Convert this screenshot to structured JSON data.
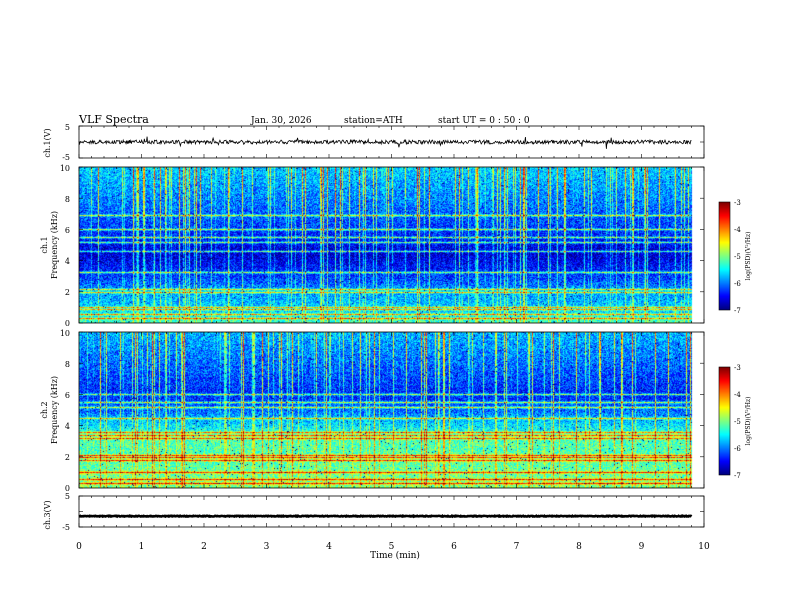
{
  "header": {
    "title": "VLF  Spectra",
    "date": "Jan. 30, 2026",
    "station": "station=ATH",
    "start": "start  UT  =   0  : 50 : 0"
  },
  "chart_data": [
    {
      "type": "line",
      "name": "ch1-waveform",
      "ylabel": "ch.1(V)",
      "ylim": [
        -5,
        5
      ],
      "ytick_labels": [
        "5",
        "-5"
      ],
      "xlim": [
        0,
        10
      ],
      "data_end_min": 9.8,
      "level_volts": 0.0,
      "noise_amplitude_volts": 0.6,
      "spike_amplitude_volts": 1.6
    },
    {
      "type": "heatmap",
      "name": "ch1-spectrogram",
      "ylabel_lines": [
        "ch.1",
        "Frequency  (kHz)"
      ],
      "ylim": [
        0,
        10
      ],
      "ytick_labels": [
        "0",
        "2",
        "4",
        "6",
        "8",
        "10"
      ],
      "xlim": [
        0,
        10
      ],
      "data_end_min": 9.8,
      "color_scale": {
        "label": "log(PSD)(V²/Hz)",
        "tick_labels": [
          "-3",
          "-4",
          "-5",
          "-6",
          "-7"
        ],
        "min": -7,
        "max": -3
      },
      "background_level": [
        {
          "freq_khz": 0,
          "log_psd": -5.2
        },
        {
          "freq_khz": 0.5,
          "log_psd": -5.6
        },
        {
          "freq_khz": 2,
          "log_psd": -5.9
        },
        {
          "freq_khz": 3,
          "log_psd": -6.3
        },
        {
          "freq_khz": 4.5,
          "log_psd": -6.7
        },
        {
          "freq_khz": 6,
          "log_psd": -6.3
        },
        {
          "freq_khz": 8,
          "log_psd": -6.0
        },
        {
          "freq_khz": 10,
          "log_psd": -5.7
        }
      ],
      "lines_khz": [
        0.3,
        0.6,
        0.9,
        1.0,
        2.0,
        2.2,
        3.3,
        4.6,
        5.2,
        5.5,
        6.0,
        6.9
      ],
      "spherics_strength": 1.0
    },
    {
      "type": "heatmap",
      "name": "ch2-spectrogram",
      "ylabel_lines": [
        "ch.2",
        "Frequency  (kHz)"
      ],
      "ylim": [
        0,
        10
      ],
      "ytick_labels": [
        "0",
        "2",
        "4",
        "6",
        "8",
        "10"
      ],
      "xlim": [
        0,
        10
      ],
      "data_end_min": 9.8,
      "color_scale": {
        "label": "log(PSD)(V²/Hz)",
        "tick_labels": [
          "-3",
          "-4",
          "-5",
          "-6",
          "-7"
        ],
        "min": -7,
        "max": -3
      },
      "background_level": [
        {
          "freq_khz": 0,
          "log_psd": -5.0
        },
        {
          "freq_khz": 1,
          "log_psd": -5.1
        },
        {
          "freq_khz": 2,
          "log_psd": -5.2
        },
        {
          "freq_khz": 3,
          "log_psd": -5.2
        },
        {
          "freq_khz": 3.8,
          "log_psd": -5.5
        },
        {
          "freq_khz": 5,
          "log_psd": -6.1
        },
        {
          "freq_khz": 6,
          "log_psd": -6.4
        },
        {
          "freq_khz": 8,
          "log_psd": -6.1
        },
        {
          "freq_khz": 10,
          "log_psd": -5.8
        }
      ],
      "lines_khz": [
        0.3,
        0.6,
        1.0,
        1.8,
        2.0,
        2.1,
        3.2,
        3.4,
        3.6,
        4.5,
        5.2,
        5.5,
        6.0
      ],
      "spherics_strength": 1.0
    },
    {
      "type": "line",
      "name": "ch3-waveform",
      "ylabel": "ch.3(V)",
      "ylim": [
        -5,
        5
      ],
      "ytick_labels": [
        "5",
        "-5"
      ],
      "xlim": [
        0,
        10
      ],
      "data_end_min": 9.8,
      "level_volts": -1.5,
      "noise_amplitude_volts": 0.12,
      "spike_amplitude_volts": 0.0
    }
  ],
  "x_axis": {
    "label": "Time  (min)",
    "tick_labels": [
      "0",
      "1",
      "2",
      "3",
      "4",
      "5",
      "6",
      "7",
      "8",
      "9",
      "10"
    ],
    "range": [
      0,
      10
    ]
  }
}
